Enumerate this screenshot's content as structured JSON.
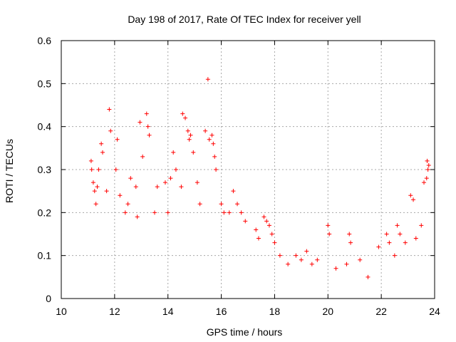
{
  "chart_data": {
    "type": "scatter",
    "title": "Day 198 of 2017, Rate Of TEC Index for receiver yell",
    "xlabel": "GPS time / hours",
    "ylabel": "ROTI / TECUs",
    "xlim": [
      10,
      24
    ],
    "ylim": [
      0,
      0.6
    ],
    "x_ticks": [
      10,
      12,
      14,
      16,
      18,
      20,
      22,
      24
    ],
    "y_ticks": [
      0,
      0.1,
      0.2,
      0.3,
      0.4,
      0.5,
      0.6
    ],
    "x_tick_labels": [
      "10",
      "12",
      "14",
      "16",
      "18",
      "20",
      "22",
      "24"
    ],
    "y_tick_labels": [
      "0",
      "0.1",
      "0.2",
      "0.3",
      "0.4",
      "0.5",
      "0.6"
    ],
    "grid": true,
    "marker": "+",
    "color": "#ff0000",
    "series": [
      {
        "name": "ROTI",
        "points": [
          [
            11.12,
            0.32
          ],
          [
            11.14,
            0.3
          ],
          [
            11.2,
            0.27
          ],
          [
            11.25,
            0.25
          ],
          [
            11.3,
            0.22
          ],
          [
            11.35,
            0.26
          ],
          [
            11.4,
            0.3
          ],
          [
            11.5,
            0.36
          ],
          [
            11.55,
            0.34
          ],
          [
            11.7,
            0.25
          ],
          [
            11.8,
            0.44
          ],
          [
            11.85,
            0.39
          ],
          [
            12.05,
            0.3
          ],
          [
            12.1,
            0.37
          ],
          [
            12.2,
            0.24
          ],
          [
            12.4,
            0.2
          ],
          [
            12.5,
            0.22
          ],
          [
            12.6,
            0.28
          ],
          [
            12.8,
            0.26
          ],
          [
            12.85,
            0.19
          ],
          [
            12.95,
            0.41
          ],
          [
            13.05,
            0.33
          ],
          [
            13.2,
            0.43
          ],
          [
            13.25,
            0.4
          ],
          [
            13.3,
            0.38
          ],
          [
            13.5,
            0.2
          ],
          [
            13.6,
            0.26
          ],
          [
            13.9,
            0.27
          ],
          [
            14.0,
            0.2
          ],
          [
            14.1,
            0.28
          ],
          [
            14.2,
            0.34
          ],
          [
            14.3,
            0.3
          ],
          [
            14.5,
            0.26
          ],
          [
            14.55,
            0.43
          ],
          [
            14.65,
            0.42
          ],
          [
            14.75,
            0.39
          ],
          [
            14.8,
            0.37
          ],
          [
            14.85,
            0.38
          ],
          [
            14.95,
            0.34
          ],
          [
            15.1,
            0.27
          ],
          [
            15.2,
            0.22
          ],
          [
            15.4,
            0.39
          ],
          [
            15.5,
            0.51
          ],
          [
            15.55,
            0.37
          ],
          [
            15.65,
            0.38
          ],
          [
            15.7,
            0.36
          ],
          [
            15.75,
            0.33
          ],
          [
            15.8,
            0.3
          ],
          [
            16.0,
            0.22
          ],
          [
            16.1,
            0.2
          ],
          [
            16.3,
            0.2
          ],
          [
            16.45,
            0.25
          ],
          [
            16.6,
            0.22
          ],
          [
            16.75,
            0.2
          ],
          [
            16.9,
            0.18
          ],
          [
            17.3,
            0.16
          ],
          [
            17.4,
            0.14
          ],
          [
            17.6,
            0.19
          ],
          [
            17.7,
            0.18
          ],
          [
            17.8,
            0.17
          ],
          [
            17.9,
            0.15
          ],
          [
            18.0,
            0.13
          ],
          [
            18.2,
            0.1
          ],
          [
            18.5,
            0.08
          ],
          [
            18.8,
            0.1
          ],
          [
            19.0,
            0.09
          ],
          [
            19.2,
            0.11
          ],
          [
            19.4,
            0.08
          ],
          [
            19.6,
            0.09
          ],
          [
            20.0,
            0.17
          ],
          [
            20.05,
            0.15
          ],
          [
            20.3,
            0.07
          ],
          [
            20.7,
            0.08
          ],
          [
            20.8,
            0.15
          ],
          [
            20.85,
            0.13
          ],
          [
            21.2,
            0.09
          ],
          [
            21.5,
            0.05
          ],
          [
            21.9,
            0.12
          ],
          [
            22.2,
            0.15
          ],
          [
            22.3,
            0.13
          ],
          [
            22.5,
            0.1
          ],
          [
            22.6,
            0.17
          ],
          [
            22.7,
            0.15
          ],
          [
            22.9,
            0.13
          ],
          [
            23.1,
            0.24
          ],
          [
            23.2,
            0.23
          ],
          [
            23.3,
            0.14
          ],
          [
            23.5,
            0.17
          ],
          [
            23.6,
            0.27
          ],
          [
            23.7,
            0.28
          ],
          [
            23.72,
            0.32
          ],
          [
            23.75,
            0.3
          ],
          [
            23.78,
            0.31
          ]
        ]
      }
    ]
  }
}
